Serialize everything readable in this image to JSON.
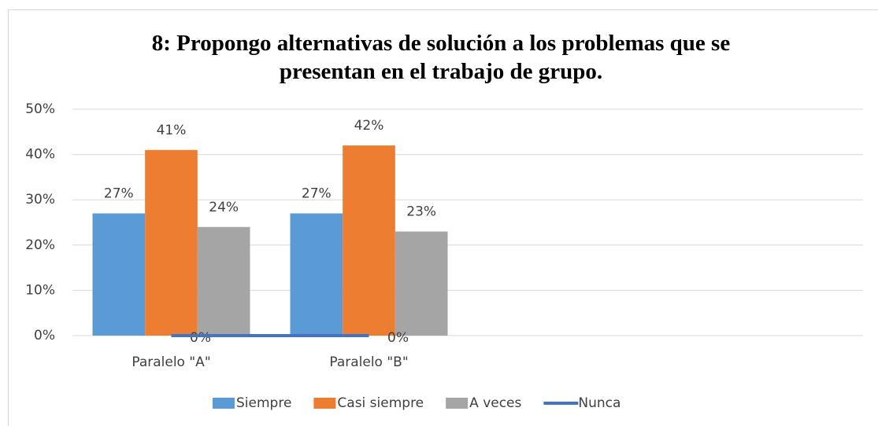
{
  "chart_data": {
    "type": "bar",
    "title": "8: Propongo alternativas de solución a los problemas que se presentan en el trabajo de grupo.",
    "categories": [
      "Paralelo \"A\"",
      "Paralelo \"B\"",
      null,
      null
    ],
    "series": [
      {
        "name": "Siempre",
        "color": "#5b9bd5",
        "values": [
          27,
          27,
          null,
          null
        ],
        "value_labels": [
          "27%",
          "27%",
          null,
          null
        ]
      },
      {
        "name": "Casi siempre",
        "color": "#ed7d31",
        "values": [
          41,
          42,
          null,
          null
        ],
        "value_labels": [
          "41%",
          "42%",
          null,
          null
        ]
      },
      {
        "name": "A veces",
        "color": "#a5a5a5",
        "values": [
          24,
          23,
          null,
          null
        ],
        "value_labels": [
          "24%",
          "23%",
          null,
          null
        ]
      },
      {
        "name": "Nunca",
        "type": "line",
        "color": "#4472c4",
        "values": [
          0,
          0,
          null,
          null
        ],
        "value_labels": [
          "0%",
          "0%",
          null,
          null
        ]
      }
    ],
    "ylim": [
      0,
      50
    ],
    "yticks": [
      {
        "value": 0,
        "label": "0%"
      },
      {
        "value": 10,
        "label": "10%"
      },
      {
        "value": 20,
        "label": "20%"
      },
      {
        "value": 30,
        "label": "30%"
      },
      {
        "value": 40,
        "label": "40%"
      },
      {
        "value": 50,
        "label": "50%"
      }
    ],
    "grid": true,
    "legend": "bottom"
  }
}
